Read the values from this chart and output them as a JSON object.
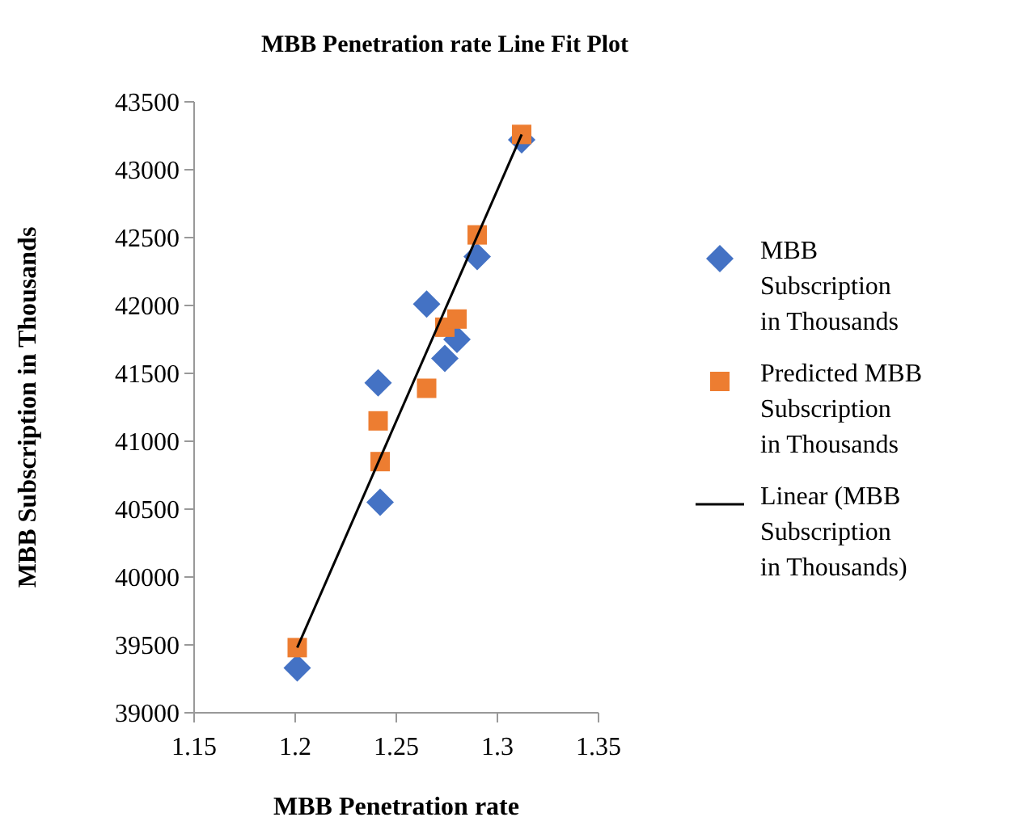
{
  "chart_data": {
    "type": "scatter",
    "title": "MBB Penetration rate Line Fit  Plot",
    "xlabel": "MBB Penetration rate",
    "ylabel": "MBB Subscription in Thousands",
    "xlim": [
      1.15,
      1.35
    ],
    "xticks": [
      1.15,
      1.2,
      1.25,
      1.3,
      1.35
    ],
    "ylim": [
      39000,
      43500
    ],
    "yticks": [
      39000,
      39500,
      40000,
      40500,
      41000,
      41500,
      42000,
      42500,
      43000,
      43500
    ],
    "legend": "right",
    "grid": false,
    "series": [
      {
        "name": "MBB Subscription in Thousands",
        "marker": "diamond",
        "color": "#4472c4",
        "x": [
          1.201,
          1.242,
          1.241,
          1.265,
          1.274,
          1.28,
          1.29,
          1.312
        ],
        "values": [
          39330,
          40550,
          41430,
          42010,
          41610,
          41750,
          42360,
          43220
        ]
      },
      {
        "name": "Predicted MBB Subscription in Thousands",
        "marker": "square",
        "color": "#ed7d31",
        "x": [
          1.201,
          1.242,
          1.241,
          1.265,
          1.274,
          1.28,
          1.29,
          1.312
        ],
        "values": [
          39480,
          40850,
          41150,
          41390,
          41840,
          41900,
          42520,
          43260
        ]
      },
      {
        "name": "Linear (MBB Subscription in Thousands)",
        "type": "line",
        "marker": "none",
        "color": "#000000",
        "x": [
          1.201,
          1.312
        ],
        "values": [
          39480,
          43260
        ]
      }
    ]
  }
}
